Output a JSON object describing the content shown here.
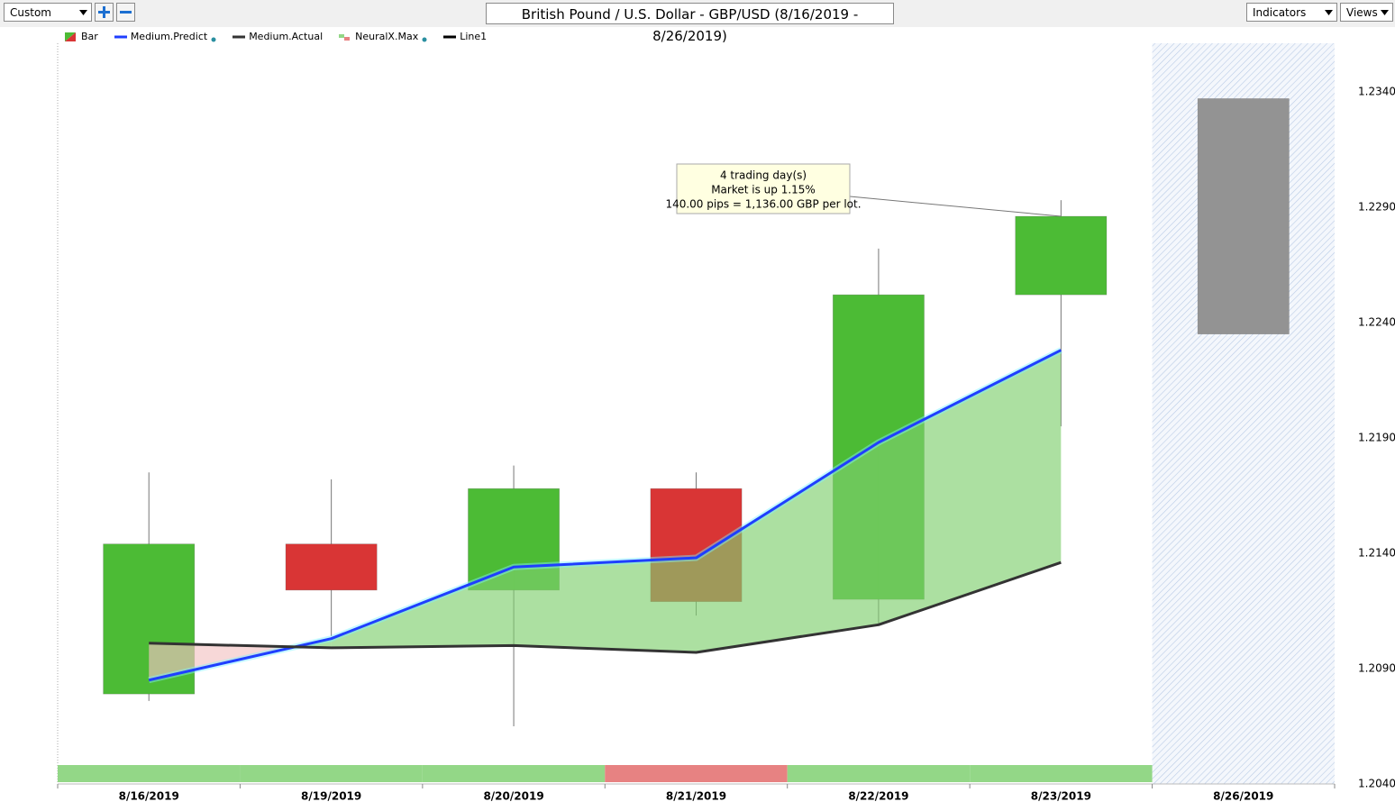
{
  "toolbar": {
    "preset": "Custom",
    "indicators": "Indicators",
    "views": "Views"
  },
  "chart_data": {
    "type": "candlestick",
    "title": "British Pound / U.S. Dollar - GBP/USD (8/16/2019 - 8/26/2019)",
    "categories": [
      "8/16/2019",
      "8/19/2019",
      "8/20/2019",
      "8/21/2019",
      "8/22/2019",
      "8/23/2019",
      "8/26/2019"
    ],
    "series": [
      {
        "name": "Bar",
        "colors": [
          "#4cbb35",
          "#d93535",
          "#4cbb35",
          "#d93535",
          "#4cbb35",
          "#4cbb35",
          "#939393"
        ],
        "open": [
          1.2079,
          1.2144,
          1.2124,
          1.2168,
          1.212,
          1.2252,
          1.2235
        ],
        "high": [
          1.2175,
          1.2172,
          1.2178,
          1.2175,
          1.2272,
          1.2293,
          null
        ],
        "low": [
          1.2076,
          1.2104,
          1.2065,
          1.2113,
          1.2109,
          1.2195,
          null
        ],
        "close": [
          1.2144,
          1.2124,
          1.2168,
          1.2119,
          1.2252,
          1.2286,
          1.2337
        ]
      },
      {
        "name": "Medium.Predict",
        "color": "#1f3fff",
        "values": [
          1.2085,
          1.2103,
          1.2134,
          1.2138,
          1.2188,
          1.2228,
          null
        ]
      },
      {
        "name": "Medium.Actual",
        "color": "#333333",
        "values": [
          1.2101,
          1.2099,
          1.21,
          1.2097,
          1.2109,
          1.2136,
          null
        ]
      },
      {
        "name": "NeuralX.Max",
        "colors": [
          "#93d787",
          "#93d787",
          "#93d787",
          "#e78282",
          "#93d787",
          "#93d787",
          null
        ]
      },
      {
        "name": "Line1",
        "color": "#000000",
        "values": [
          null,
          null,
          null,
          null,
          null,
          null,
          null
        ]
      }
    ],
    "fill_up_color": "#7fcf6e",
    "fill_down_color": "#f3c3c3",
    "annotation": [
      "4 trading day(s)",
      "Market is up 1.15%",
      "140.00 pips = 1,136.00 GBP per lot."
    ],
    "ylim": [
      1.204,
      1.2361
    ],
    "yticks": [
      {
        "value": 1.204,
        "label": "1.2040"
      },
      {
        "value": 1.209,
        "label": "1.2090"
      },
      {
        "value": 1.214,
        "label": "1.2140"
      },
      {
        "value": 1.219,
        "label": "1.2190"
      },
      {
        "value": 1.224,
        "label": "1.2240"
      },
      {
        "value": 1.229,
        "label": "1.2290"
      },
      {
        "value": 1.234,
        "label": "1.2340"
      }
    ]
  }
}
